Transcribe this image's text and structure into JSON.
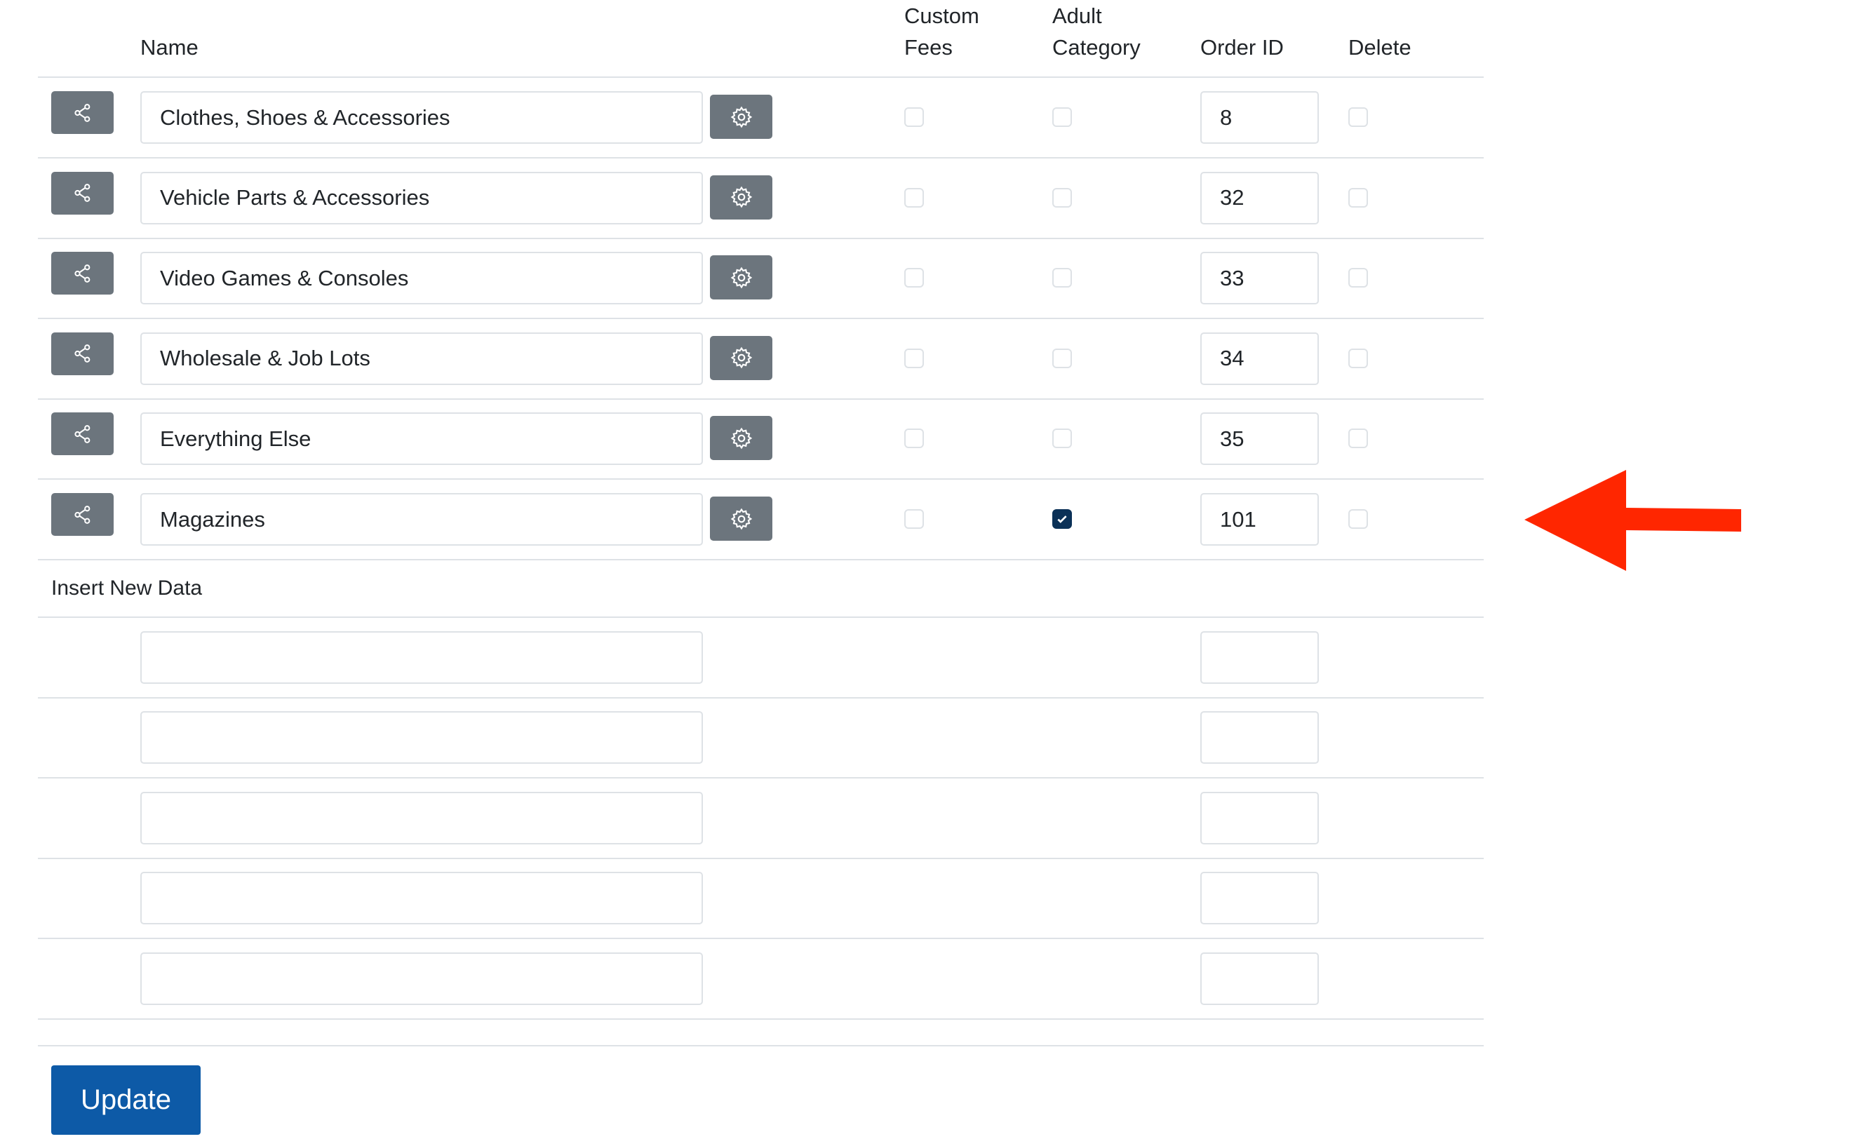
{
  "header": {
    "name": "Name",
    "custom_fees": [
      "Custom",
      "Fees"
    ],
    "adult_category": [
      "Adult",
      "Category"
    ],
    "order_id": "Order ID",
    "delete": "Delete"
  },
  "rows": [
    {
      "name": "Clothes, Shoes & Accessories",
      "custom_fees": false,
      "adult": false,
      "order_id": "8",
      "delete": false
    },
    {
      "name": "Vehicle Parts & Accessories",
      "custom_fees": false,
      "adult": false,
      "order_id": "32",
      "delete": false
    },
    {
      "name": "Video Games & Consoles",
      "custom_fees": false,
      "adult": false,
      "order_id": "33",
      "delete": false
    },
    {
      "name": "Wholesale & Job Lots",
      "custom_fees": false,
      "adult": false,
      "order_id": "34",
      "delete": false
    },
    {
      "name": "Everything Else",
      "custom_fees": false,
      "adult": false,
      "order_id": "35",
      "delete": false
    },
    {
      "name": "Magazines",
      "custom_fees": false,
      "adult": true,
      "order_id": "101",
      "delete": false
    }
  ],
  "insert": {
    "label": "Insert New Data",
    "rows": 5
  },
  "update_label": "Update",
  "icons": {
    "row_button": "share-icon",
    "settings_button": "gear-icon",
    "annotation": "red-arrow-left"
  },
  "colors": {
    "button_gray": "#6c757d",
    "checked": "#0b3157",
    "update": "#0d5aa7",
    "arrow": "#ff2600"
  }
}
